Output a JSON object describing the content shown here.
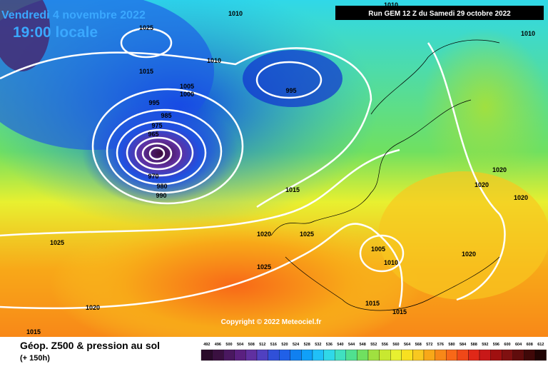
{
  "header": {
    "date": "Vendredi 4 novembre 2022",
    "time": "19:00 locale",
    "run": "Run GEM 12 Z du Samedi 29 octobre 2022"
  },
  "isobar_labels": [
    "1025",
    "1010",
    "1010",
    "1015",
    "1005",
    "1000",
    "995",
    "985",
    "975",
    "965",
    "995",
    "970",
    "980",
    "990",
    "1015",
    "1020",
    "1025",
    "1025",
    "1025",
    "1020",
    "1015",
    "1010",
    "1010",
    "1020",
    "1020",
    "1020",
    "1020",
    "1005",
    "1010",
    "1015",
    "1015"
  ],
  "copyright": "Copyright © 2022 Meteociel.fr",
  "footer": {
    "title": "Géop. Z500 & pression au sol",
    "lead": "(+ 150h)"
  },
  "legend": {
    "labels": [
      492,
      496,
      500,
      504,
      508,
      512,
      516,
      520,
      524,
      528,
      532,
      536,
      540,
      544,
      548,
      552,
      556,
      560,
      564,
      568,
      572,
      576,
      580,
      584,
      588,
      592,
      596,
      600,
      604,
      608,
      612
    ],
    "colors": [
      "#2a0a2a",
      "#3a1040",
      "#4a1860",
      "#5a2080",
      "#6030a0",
      "#5040c0",
      "#3050d8",
      "#2060e8",
      "#1080f0",
      "#10a0f8",
      "#20c0f8",
      "#30d8e8",
      "#40e0c0",
      "#50e090",
      "#70e060",
      "#a0e040",
      "#c8e830",
      "#e8f030",
      "#f8e020",
      "#f8c820",
      "#f8a818",
      "#f88818",
      "#f86818",
      "#f04818",
      "#e02818",
      "#c81818",
      "#a01010",
      "#801010",
      "#600c0c",
      "#400808",
      "#200404"
    ]
  }
}
